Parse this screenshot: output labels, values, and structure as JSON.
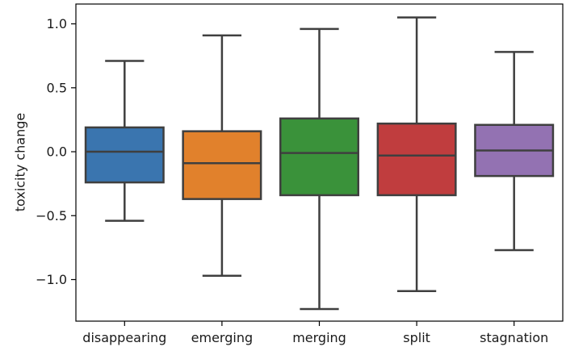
{
  "chart_data": {
    "type": "box",
    "title": "",
    "xlabel": "",
    "ylabel": "toxicity change",
    "ylim": [
      -1.325,
      1.155
    ],
    "yticks": [
      {
        "value": 1.0,
        "label": "1.0"
      },
      {
        "value": 0.5,
        "label": "0.5"
      },
      {
        "value": 0.0,
        "label": "0.0"
      },
      {
        "value": -0.5,
        "label": "−0.5"
      },
      {
        "value": -1.0,
        "label": "−1.0"
      }
    ],
    "grid": false,
    "legend": "none",
    "categories": [
      "disappearing",
      "emerging",
      "merging",
      "split",
      "stagnation"
    ],
    "boxes": [
      {
        "category": "disappearing",
        "whisker_low": -0.54,
        "q1": -0.24,
        "median": 0.0,
        "q3": 0.19,
        "whisker_high": 0.71,
        "color": "#3a75af"
      },
      {
        "category": "emerging",
        "whisker_low": -0.97,
        "q1": -0.37,
        "median": -0.09,
        "q3": 0.16,
        "whisker_high": 0.91,
        "color": "#e1812c"
      },
      {
        "category": "merging",
        "whisker_low": -1.23,
        "q1": -0.34,
        "median": -0.01,
        "q3": 0.26,
        "whisker_high": 0.96,
        "color": "#3a923a"
      },
      {
        "category": "split",
        "whisker_low": -1.09,
        "q1": -0.34,
        "median": -0.03,
        "q3": 0.22,
        "whisker_high": 1.05,
        "color": "#c03d3e"
      },
      {
        "category": "stagnation",
        "whisker_low": -0.77,
        "q1": -0.19,
        "median": 0.01,
        "q3": 0.21,
        "whisker_high": 0.78,
        "color": "#9372b2"
      }
    ],
    "line_color": "#3f3f3f"
  }
}
